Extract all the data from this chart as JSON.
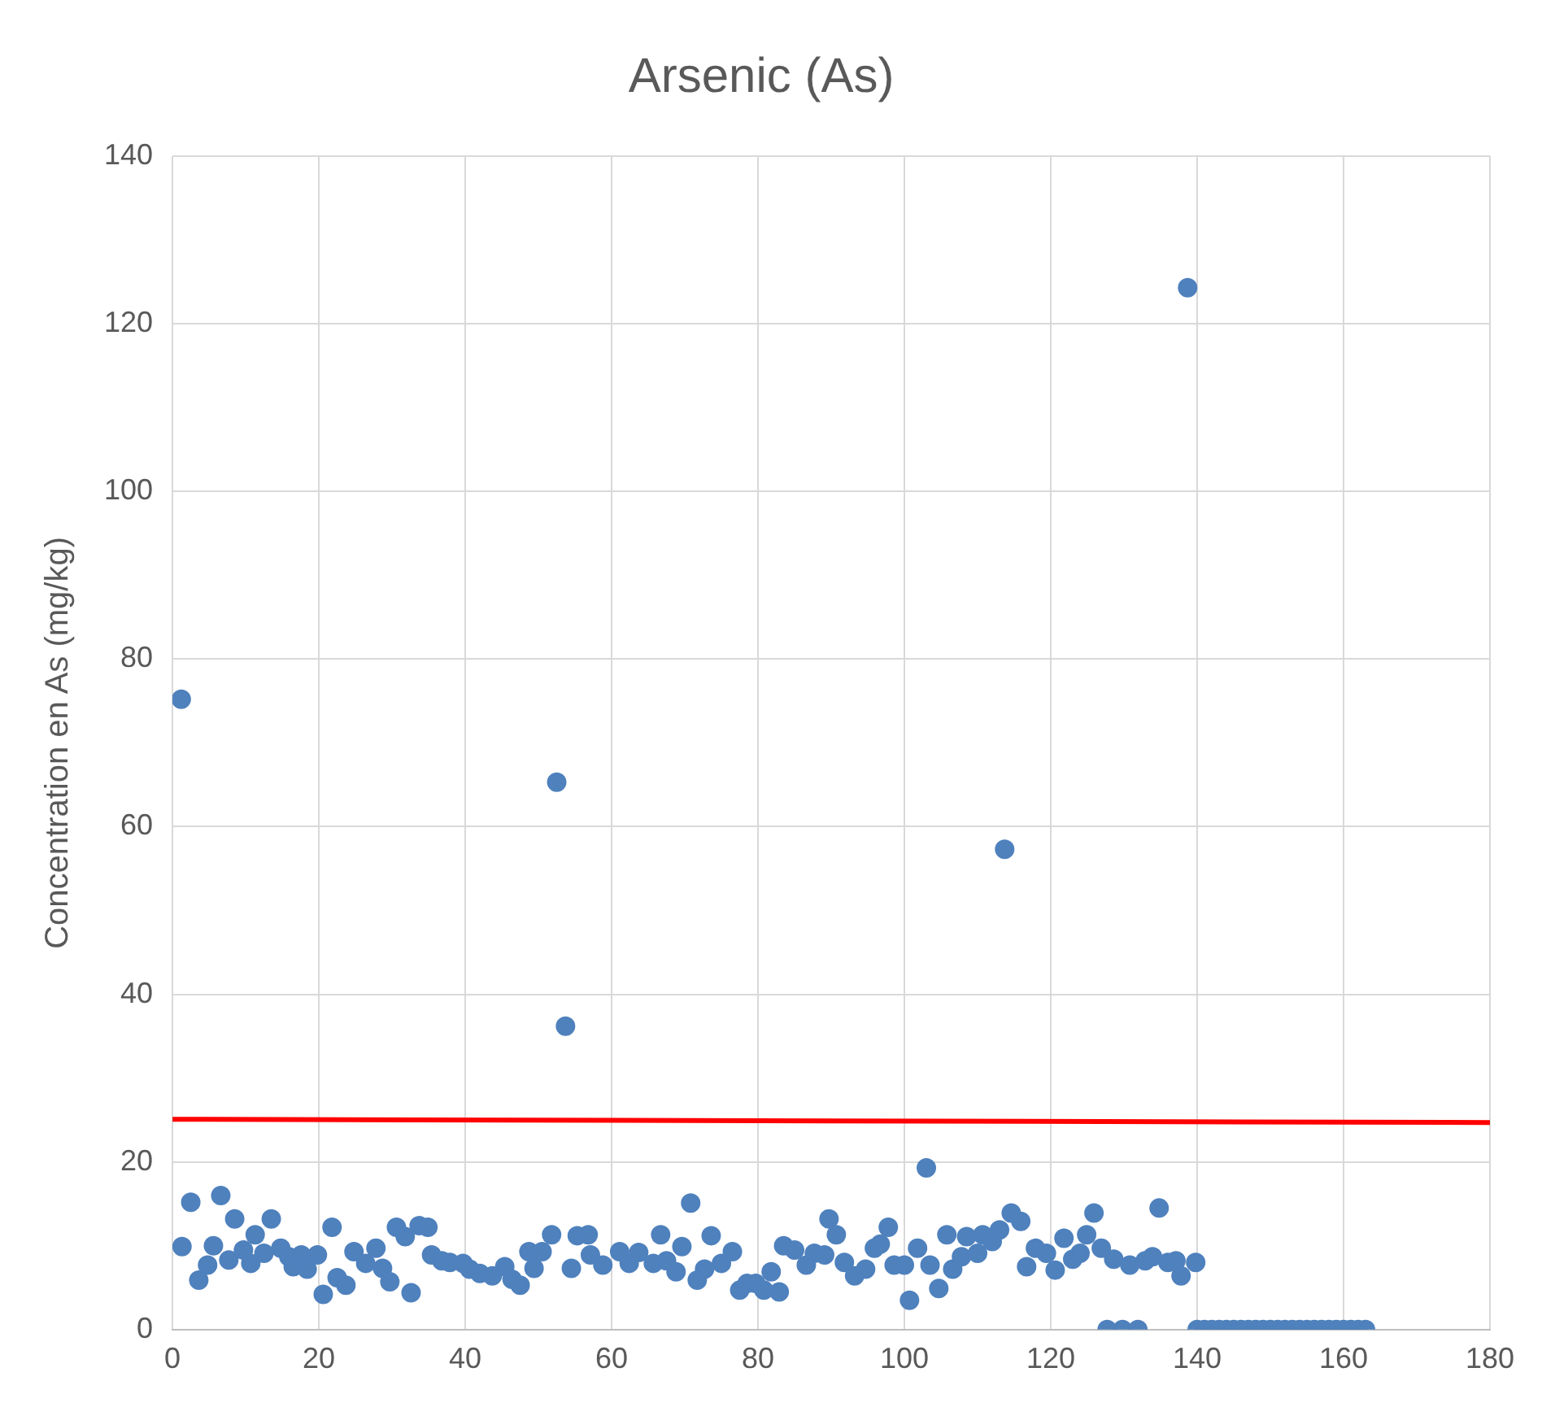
{
  "chart_data": {
    "type": "scatter",
    "title": "Arsenic (As)",
    "ylabel": "Concentration en As (mg/kg)",
    "xlim": [
      0,
      180
    ],
    "xticks": [
      0,
      20,
      40,
      60,
      80,
      100,
      120,
      140,
      160,
      180
    ],
    "ylim": [
      0,
      140
    ],
    "yticks": [
      0,
      20,
      40,
      60,
      80,
      100,
      120,
      140
    ],
    "grid": true,
    "legend": false,
    "marker": "circle",
    "series": [
      {
        "type": "scatter",
        "color": "#4f81bd",
        "x": [
          1.2,
          1.3,
          2.5,
          3.6,
          4.8,
          5.6,
          6.6,
          7.7,
          8.5,
          9.7,
          10.7,
          11.3,
          12.5,
          13.5,
          14.8,
          15.9,
          16.5,
          17.6,
          18.4,
          19.8,
          20.6,
          21.8,
          22.5,
          23.7,
          24.8,
          26.4,
          27.8,
          28.7,
          29.7,
          30.6,
          31.8,
          32.6,
          33.7,
          34.9,
          35.4,
          36.8,
          37.9,
          39.7,
          40.6,
          42,
          43.7,
          45.4,
          46.4,
          47.5,
          48.7,
          49.4,
          50.5,
          51.8,
          52.5,
          53.7,
          54.5,
          55.3,
          56.8,
          57.1,
          58.8,
          61.1,
          62.4,
          63.7,
          65.7,
          66.7,
          67.5,
          68.8,
          69.6,
          70.8,
          71.7,
          72.7,
          73.6,
          75,
          76.5,
          77.5,
          78.5,
          79.7,
          80.8,
          81.8,
          82.9,
          83.5,
          85,
          86.6,
          87.7,
          89.1,
          89.7,
          90.7,
          91.8,
          93.2,
          94.7,
          95.9,
          96.7,
          97.8,
          98.6,
          100,
          100.7,
          101.8,
          103,
          103.5,
          104.7,
          105.8,
          106.6,
          107.8,
          108.5,
          110,
          110.7,
          112,
          113,
          113.7,
          114.6,
          115.9,
          116.7,
          117.9,
          119.4,
          120.6,
          121.8,
          123,
          124,
          124.9,
          125.9,
          126.9,
          127.7,
          128.6,
          129.8,
          130.8,
          131.9,
          132.9,
          133.9,
          134.8,
          136,
          137.1,
          137.8,
          138.7,
          139.8,
          140,
          141,
          142,
          143,
          144,
          145,
          146,
          147,
          148,
          149,
          150,
          151,
          152,
          153,
          154,
          155,
          156,
          157,
          158,
          159,
          160,
          161,
          162,
          163
        ],
        "values": [
          75.2,
          9.9,
          15.2,
          5.9,
          7.7,
          10,
          16,
          8.3,
          13.2,
          9.5,
          7.9,
          11.3,
          9.1,
          13.2,
          9.7,
          8.7,
          7.5,
          8.9,
          7.2,
          8.9,
          4.2,
          12.2,
          6.2,
          5.3,
          9.3,
          7.9,
          9.7,
          7.3,
          5.7,
          12.2,
          11.1,
          4.4,
          12.4,
          12.2,
          8.9,
          8.2,
          8,
          7.9,
          7.2,
          6.7,
          6.4,
          7.5,
          6,
          5.3,
          9.3,
          7.3,
          9.3,
          11.3,
          65.3,
          36.2,
          7.3,
          11.2,
          11.3,
          8.9,
          7.7,
          9.3,
          7.9,
          9.2,
          7.9,
          11.3,
          8.2,
          6.9,
          9.9,
          15.1,
          5.9,
          7.2,
          11.2,
          7.9,
          9.3,
          4.7,
          5.5,
          5.5,
          4.7,
          6.9,
          4.5,
          10,
          9.5,
          7.7,
          9.1,
          8.9,
          13.2,
          11.3,
          8,
          6.4,
          7.2,
          9.7,
          10.2,
          12.2,
          7.7,
          7.7,
          3.5,
          9.7,
          19.3,
          7.7,
          4.9,
          11.3,
          7.2,
          8.7,
          11.1,
          9.1,
          11.3,
          10.5,
          11.9,
          57.3,
          13.9,
          12.9,
          7.5,
          9.7,
          9.1,
          7.1,
          10.9,
          8.4,
          9.1,
          11.3,
          13.9,
          9.7,
          0,
          8.4,
          0,
          7.7,
          0,
          8.2,
          8.7,
          14.5,
          8,
          8.2,
          6.4,
          124.3,
          8,
          0,
          0,
          0,
          0,
          0,
          0,
          0,
          0,
          0,
          0,
          0,
          0,
          0,
          0,
          0,
          0,
          0,
          0,
          0,
          0,
          0,
          0,
          0,
          0
        ]
      },
      {
        "type": "line",
        "color": "#ff0000",
        "marker": "none",
        "x": [
          0,
          180
        ],
        "values": [
          25.1,
          24.7
        ]
      }
    ]
  }
}
